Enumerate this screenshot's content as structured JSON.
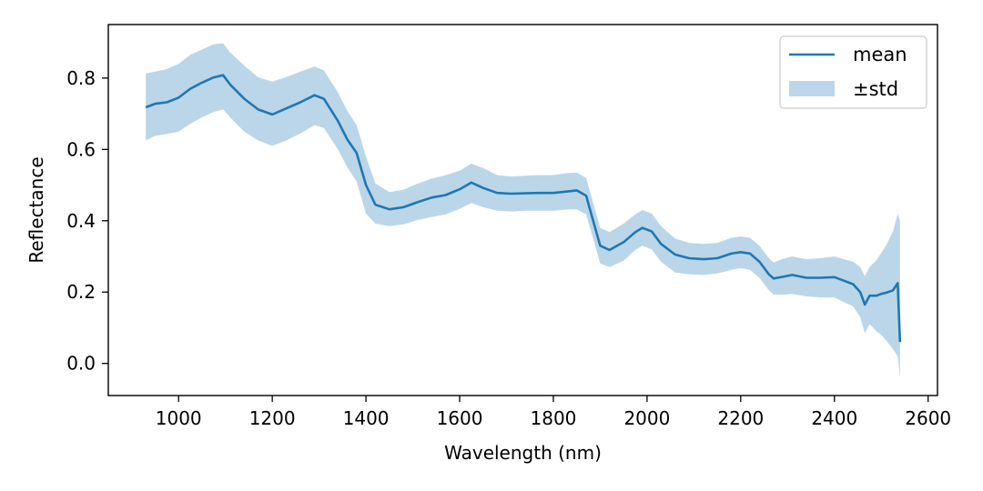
{
  "chart_data": {
    "type": "line",
    "title": "",
    "xlabel": "Wavelength (nm)",
    "ylabel": "Reflectance",
    "xlim": [
      850,
      2620
    ],
    "ylim": [
      -0.09,
      0.95
    ],
    "xticks": [
      1000,
      1200,
      1400,
      1600,
      1800,
      2000,
      2200,
      2400,
      2600
    ],
    "yticks": [
      0.0,
      0.2,
      0.4,
      0.6,
      0.8
    ],
    "xtick_labels": [
      "1000",
      "1200",
      "1400",
      "1600",
      "1800",
      "2000",
      "2200",
      "2400",
      "2600"
    ],
    "ytick_labels": [
      "0.0",
      "0.2",
      "0.4",
      "0.6",
      "0.8"
    ],
    "grid": false,
    "legend_position": "top-right",
    "colors": {
      "mean": "#1f77b4",
      "band": "#1f77b4",
      "band_opacity": 0.3
    },
    "legend": [
      {
        "label": "mean",
        "kind": "line"
      },
      {
        "label": "±std",
        "kind": "patch"
      }
    ],
    "series": [
      {
        "name": "mean",
        "x": [
          930,
          950,
          975,
          1000,
          1025,
          1050,
          1075,
          1095,
          1110,
          1140,
          1170,
          1200,
          1230,
          1260,
          1290,
          1310,
          1340,
          1360,
          1380,
          1400,
          1420,
          1450,
          1480,
          1510,
          1540,
          1570,
          1600,
          1625,
          1650,
          1680,
          1710,
          1740,
          1770,
          1800,
          1830,
          1850,
          1870,
          1885,
          1900,
          1920,
          1950,
          1975,
          1990,
          2010,
          2030,
          2060,
          2090,
          2120,
          2150,
          2180,
          2200,
          2220,
          2240,
          2260,
          2270,
          2290,
          2310,
          2340,
          2370,
          2400,
          2420,
          2440,
          2455,
          2465,
          2475,
          2490,
          2500,
          2510,
          2525,
          2535,
          2540
        ],
        "y": [
          0.718,
          0.728,
          0.732,
          0.745,
          0.77,
          0.787,
          0.802,
          0.808,
          0.782,
          0.742,
          0.712,
          0.698,
          0.715,
          0.732,
          0.752,
          0.742,
          0.68,
          0.628,
          0.59,
          0.5,
          0.445,
          0.432,
          0.438,
          0.452,
          0.465,
          0.472,
          0.488,
          0.507,
          0.492,
          0.478,
          0.476,
          0.477,
          0.478,
          0.478,
          0.482,
          0.485,
          0.47,
          0.4,
          0.33,
          0.318,
          0.34,
          0.368,
          0.38,
          0.37,
          0.335,
          0.305,
          0.295,
          0.292,
          0.295,
          0.308,
          0.312,
          0.308,
          0.285,
          0.25,
          0.238,
          0.243,
          0.248,
          0.24,
          0.24,
          0.242,
          0.232,
          0.222,
          0.2,
          0.165,
          0.19,
          0.19,
          0.195,
          0.198,
          0.205,
          0.225,
          0.06
        ]
      },
      {
        "name": "±std",
        "x": [
          930,
          950,
          975,
          1000,
          1025,
          1050,
          1075,
          1095,
          1110,
          1140,
          1170,
          1200,
          1230,
          1260,
          1290,
          1310,
          1340,
          1360,
          1380,
          1400,
          1420,
          1450,
          1480,
          1510,
          1540,
          1570,
          1600,
          1625,
          1650,
          1680,
          1710,
          1740,
          1770,
          1800,
          1830,
          1850,
          1870,
          1885,
          1900,
          1920,
          1950,
          1975,
          1990,
          2010,
          2030,
          2060,
          2090,
          2120,
          2150,
          2180,
          2200,
          2220,
          2240,
          2260,
          2270,
          2290,
          2310,
          2340,
          2370,
          2400,
          2420,
          2440,
          2455,
          2465,
          2475,
          2490,
          2500,
          2510,
          2525,
          2535,
          2540
        ],
        "upper": [
          0.813,
          0.818,
          0.825,
          0.84,
          0.865,
          0.88,
          0.895,
          0.897,
          0.872,
          0.835,
          0.802,
          0.79,
          0.803,
          0.818,
          0.832,
          0.822,
          0.76,
          0.708,
          0.668,
          0.58,
          0.505,
          0.48,
          0.487,
          0.504,
          0.518,
          0.528,
          0.54,
          0.56,
          0.548,
          0.528,
          0.524,
          0.526,
          0.528,
          0.528,
          0.534,
          0.535,
          0.52,
          0.45,
          0.38,
          0.368,
          0.392,
          0.418,
          0.43,
          0.42,
          0.385,
          0.35,
          0.338,
          0.335,
          0.338,
          0.352,
          0.356,
          0.352,
          0.33,
          0.295,
          0.283,
          0.293,
          0.3,
          0.292,
          0.295,
          0.3,
          0.292,
          0.285,
          0.27,
          0.245,
          0.27,
          0.29,
          0.31,
          0.33,
          0.37,
          0.42,
          0.4
        ],
        "lower": [
          0.625,
          0.638,
          0.643,
          0.65,
          0.672,
          0.69,
          0.705,
          0.712,
          0.69,
          0.65,
          0.625,
          0.61,
          0.625,
          0.645,
          0.668,
          0.66,
          0.6,
          0.55,
          0.51,
          0.42,
          0.392,
          0.385,
          0.39,
          0.402,
          0.41,
          0.418,
          0.433,
          0.45,
          0.438,
          0.428,
          0.426,
          0.428,
          0.428,
          0.428,
          0.432,
          0.432,
          0.418,
          0.35,
          0.28,
          0.27,
          0.288,
          0.318,
          0.33,
          0.32,
          0.285,
          0.255,
          0.25,
          0.248,
          0.252,
          0.262,
          0.267,
          0.262,
          0.24,
          0.205,
          0.193,
          0.193,
          0.195,
          0.188,
          0.185,
          0.185,
          0.172,
          0.16,
          0.13,
          0.085,
          0.11,
          0.09,
          0.08,
          0.065,
          0.04,
          0.02,
          -0.04
        ]
      }
    ]
  }
}
